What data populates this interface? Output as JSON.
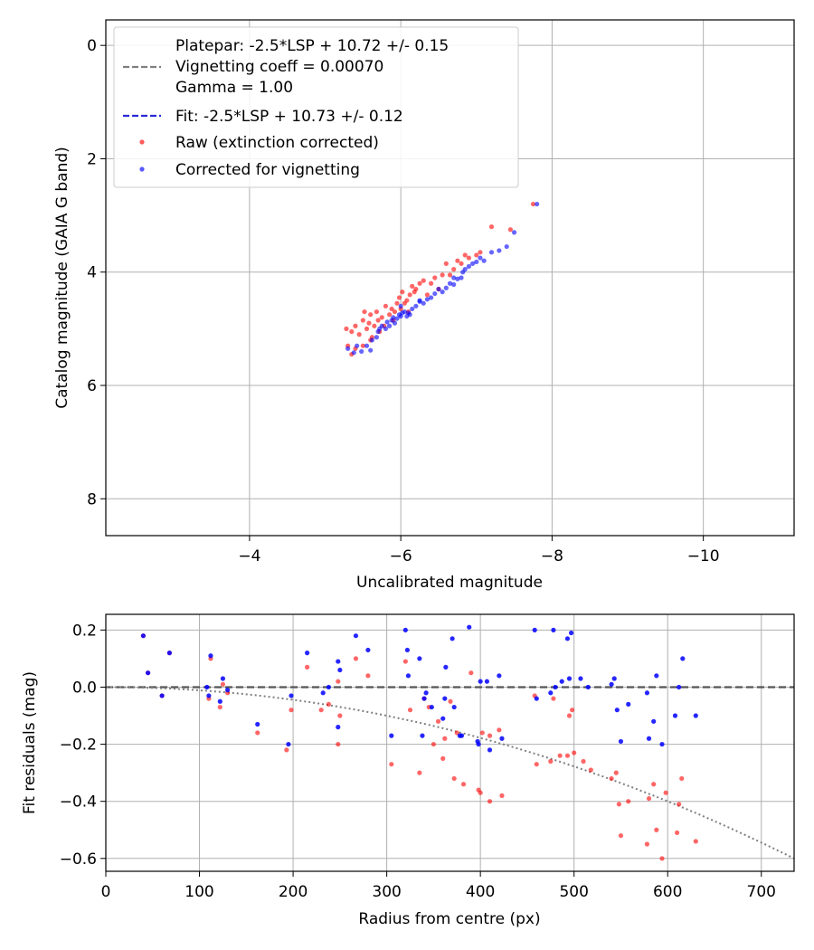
{
  "chart_data": [
    {
      "type": "scatter",
      "xlabel": "Uncalibrated magnitude",
      "ylabel": "Catalog magnitude (GAIA G band)",
      "xlim": [
        -2.1,
        -11.2
      ],
      "ylim": [
        8.65,
        -0.45
      ],
      "x_inverted": true,
      "y_inverted": true,
      "x_ticks": [
        -4,
        -6,
        -8,
        -10
      ],
      "x_tick_labels": [
        "−4",
        "−6",
        "−8",
        "−10"
      ],
      "y_ticks": [
        0,
        2,
        4,
        6,
        8
      ],
      "y_tick_labels": [
        "0",
        "2",
        "4",
        "6",
        "8"
      ],
      "grid": true,
      "legend_position": "upper-left",
      "lines": [
        {
          "name": "Platepar: -2.5*LSP + 10.72 +/- 0.15\nVignetting coeff = 0.00070\nGamma = 1.00",
          "slope": -1,
          "intercept": 10.72,
          "color": "#7f7f7f",
          "style": "dashed"
        },
        {
          "name": "Fit: -2.5*LSP + 10.73 +/- 0.12",
          "slope": -1,
          "intercept": 10.73,
          "color": "#2a2ad6",
          "style": "dashed"
        }
      ],
      "series": [
        {
          "name": "Raw (extinction corrected)",
          "color": "#ff0000",
          "points": [
            [
              -5.28,
              5.0
            ],
            [
              -5.35,
              5.05
            ],
            [
              -5.4,
              4.95
            ],
            [
              -5.45,
              5.1
            ],
            [
              -5.5,
              4.85
            ],
            [
              -5.52,
              4.7
            ],
            [
              -5.55,
              5.0
            ],
            [
              -5.58,
              4.9
            ],
            [
              -5.6,
              4.75
            ],
            [
              -5.62,
              5.15
            ],
            [
              -5.65,
              4.95
            ],
            [
              -5.68,
              4.7
            ],
            [
              -5.7,
              4.85
            ],
            [
              -5.72,
              5.05
            ],
            [
              -5.75,
              4.8
            ],
            [
              -5.78,
              4.95
            ],
            [
              -5.8,
              4.6
            ],
            [
              -5.85,
              4.75
            ],
            [
              -5.88,
              4.65
            ],
            [
              -5.9,
              4.85
            ],
            [
              -5.92,
              4.7
            ],
            [
              -5.95,
              4.55
            ],
            [
              -5.98,
              4.45
            ],
            [
              -6.0,
              4.65
            ],
            [
              -6.02,
              4.35
            ],
            [
              -6.05,
              4.55
            ],
            [
              -6.08,
              4.5
            ],
            [
              -6.1,
              4.7
            ],
            [
              -6.12,
              4.4
            ],
            [
              -6.15,
              4.25
            ],
            [
              -6.18,
              4.35
            ],
            [
              -6.2,
              4.3
            ],
            [
              -6.25,
              4.2
            ],
            [
              -6.3,
              4.15
            ],
            [
              -6.35,
              4.4
            ],
            [
              -6.4,
              4.2
            ],
            [
              -6.45,
              4.1
            ],
            [
              -6.5,
              4.3
            ],
            [
              -6.55,
              4.05
            ],
            [
              -6.6,
              3.85
            ],
            [
              -6.65,
              4.05
            ],
            [
              -6.7,
              3.95
            ],
            [
              -6.75,
              3.8
            ],
            [
              -6.8,
              3.85
            ],
            [
              -6.85,
              3.7
            ],
            [
              -6.9,
              3.75
            ],
            [
              -7.0,
              3.7
            ],
            [
              -7.05,
              3.65
            ],
            [
              -7.2,
              3.2
            ],
            [
              -7.45,
              3.25
            ],
            [
              -7.75,
              2.8
            ],
            [
              -5.3,
              5.3
            ],
            [
              -5.35,
              5.45
            ],
            [
              -5.4,
              5.35
            ],
            [
              -5.5,
              5.3
            ],
            [
              -5.6,
              5.2
            ]
          ]
        },
        {
          "name": "Corrected for vignetting",
          "color": "#0000ff",
          "points": [
            [
              -5.3,
              5.35
            ],
            [
              -5.38,
              5.42
            ],
            [
              -5.42,
              5.3
            ],
            [
              -5.48,
              5.4
            ],
            [
              -5.55,
              5.3
            ],
            [
              -5.6,
              5.38
            ],
            [
              -5.62,
              5.2
            ],
            [
              -5.68,
              5.15
            ],
            [
              -5.7,
              5.05
            ],
            [
              -5.72,
              5.0
            ],
            [
              -5.75,
              4.95
            ],
            [
              -5.8,
              5.0
            ],
            [
              -5.82,
              4.88
            ],
            [
              -5.85,
              4.95
            ],
            [
              -5.88,
              4.85
            ],
            [
              -5.9,
              4.8
            ],
            [
              -5.92,
              4.9
            ],
            [
              -5.95,
              4.82
            ],
            [
              -5.98,
              4.75
            ],
            [
              -6.0,
              4.78
            ],
            [
              -6.02,
              4.72
            ],
            [
              -6.05,
              4.7
            ],
            [
              -6.08,
              4.78
            ],
            [
              -6.1,
              4.72
            ],
            [
              -6.12,
              4.75
            ],
            [
              -6.15,
              4.65
            ],
            [
              -6.2,
              4.6
            ],
            [
              -6.25,
              4.52
            ],
            [
              -6.3,
              4.55
            ],
            [
              -6.35,
              4.48
            ],
            [
              -6.4,
              4.45
            ],
            [
              -6.45,
              4.38
            ],
            [
              -6.5,
              4.3
            ],
            [
              -6.55,
              4.35
            ],
            [
              -6.6,
              4.28
            ],
            [
              -6.65,
              4.2
            ],
            [
              -6.7,
              4.22
            ],
            [
              -6.75,
              4.12
            ],
            [
              -6.8,
              4.1
            ],
            [
              -6.82,
              4.0
            ],
            [
              -6.85,
              3.95
            ],
            [
              -6.9,
              3.9
            ],
            [
              -6.95,
              3.85
            ],
            [
              -7.0,
              3.82
            ],
            [
              -7.05,
              3.75
            ],
            [
              -7.1,
              3.8
            ],
            [
              -7.2,
              3.65
            ],
            [
              -7.3,
              3.62
            ],
            [
              -7.4,
              3.55
            ],
            [
              -7.5,
              3.3
            ],
            [
              -7.8,
              2.8
            ],
            [
              -6.0,
              4.6
            ],
            [
              -6.25,
              4.5
            ],
            [
              -6.7,
              4.1
            ]
          ]
        }
      ]
    },
    {
      "type": "scatter",
      "xlabel": "Radius from centre (px)",
      "ylabel": "Fit residuals (mag)",
      "xlim": [
        0,
        735
      ],
      "ylim": [
        -0.645,
        0.255
      ],
      "x_ticks": [
        0,
        100,
        200,
        300,
        400,
        500,
        600,
        700
      ],
      "x_tick_labels": [
        "0",
        "100",
        "200",
        "300",
        "400",
        "500",
        "600",
        "700"
      ],
      "y_ticks": [
        0.2,
        0.0,
        -0.2,
        -0.4,
        -0.6
      ],
      "y_tick_labels": [
        "0.2",
        "0.0",
        "−0.2",
        "−0.4",
        "−0.6"
      ],
      "grid": true,
      "lines": [
        {
          "type": "horizontal",
          "y": 0.0,
          "color": "#555555",
          "style": "dashed"
        },
        {
          "type": "curve",
          "function": "-0.000001111*x^2",
          "color": "#7f7f7f",
          "style": "dotted"
        }
      ],
      "series": [
        {
          "name": "Raw",
          "color": "#ff0000",
          "points": [
            [
              40,
              0.18
            ],
            [
              45,
              0.05
            ],
            [
              60,
              -0.03
            ],
            [
              68,
              0.12
            ],
            [
              110,
              -0.04
            ],
            [
              112,
              0.1
            ],
            [
              122,
              -0.07
            ],
            [
              125,
              0.01
            ],
            [
              130,
              -0.02
            ],
            [
              162,
              -0.16
            ],
            [
              193,
              -0.22
            ],
            [
              198,
              -0.08
            ],
            [
              215,
              0.07
            ],
            [
              230,
              -0.08
            ],
            [
              238,
              -0.06
            ],
            [
              248,
              0.02
            ],
            [
              248,
              -0.2
            ],
            [
              250,
              -0.1
            ],
            [
              267,
              0.1
            ],
            [
              280,
              0.04
            ],
            [
              305,
              -0.27
            ],
            [
              320,
              0.09
            ],
            [
              325,
              -0.08
            ],
            [
              335,
              -0.3
            ],
            [
              340,
              -0.04
            ],
            [
              345,
              -0.07
            ],
            [
              350,
              -0.2
            ],
            [
              355,
              -0.12
            ],
            [
              360,
              -0.25
            ],
            [
              362,
              -0.18
            ],
            [
              368,
              -0.05
            ],
            [
              372,
              -0.32
            ],
            [
              375,
              -0.16
            ],
            [
              382,
              -0.34
            ],
            [
              390,
              0.05
            ],
            [
              398,
              -0.36
            ],
            [
              400,
              -0.37
            ],
            [
              402,
              -0.16
            ],
            [
              410,
              -0.4
            ],
            [
              410,
              -0.17
            ],
            [
              420,
              -0.15
            ],
            [
              423,
              -0.38
            ],
            [
              458,
              -0.03
            ],
            [
              460,
              -0.27
            ],
            [
              475,
              -0.26
            ],
            [
              478,
              -0.04
            ],
            [
              485,
              -0.24
            ],
            [
              493,
              -0.24
            ],
            [
              495,
              -0.1
            ],
            [
              498,
              -0.08
            ],
            [
              500,
              -0.23
            ],
            [
              510,
              -0.26
            ],
            [
              518,
              -0.29
            ],
            [
              540,
              -0.32
            ],
            [
              545,
              -0.3
            ],
            [
              548,
              -0.41
            ],
            [
              550,
              -0.52
            ],
            [
              558,
              -0.4
            ],
            [
              578,
              -0.55
            ],
            [
              580,
              -0.39
            ],
            [
              585,
              -0.34
            ],
            [
              588,
              -0.5
            ],
            [
              594,
              -0.6
            ],
            [
              598,
              -0.37
            ],
            [
              610,
              -0.51
            ],
            [
              612,
              -0.41
            ],
            [
              615,
              -0.32
            ],
            [
              630,
              -0.54
            ]
          ]
        },
        {
          "name": "Corrected",
          "color": "#0000ff",
          "points": [
            [
              40,
              0.18
            ],
            [
              45,
              0.05
            ],
            [
              60,
              -0.03
            ],
            [
              68,
              0.12
            ],
            [
              108,
              0.0
            ],
            [
              110,
              -0.03
            ],
            [
              112,
              0.11
            ],
            [
              122,
              -0.05
            ],
            [
              125,
              0.03
            ],
            [
              130,
              -0.01
            ],
            [
              162,
              -0.13
            ],
            [
              195,
              -0.2
            ],
            [
              198,
              -0.03
            ],
            [
              215,
              0.12
            ],
            [
              232,
              -0.02
            ],
            [
              238,
              0.0
            ],
            [
              248,
              0.09
            ],
            [
              248,
              -0.14
            ],
            [
              250,
              0.06
            ],
            [
              267,
              0.18
            ],
            [
              280,
              0.13
            ],
            [
              305,
              -0.17
            ],
            [
              320,
              0.2
            ],
            [
              322,
              0.13
            ],
            [
              323,
              0.04
            ],
            [
              335,
              0.1
            ],
            [
              338,
              -0.17
            ],
            [
              340,
              -0.04
            ],
            [
              342,
              -0.02
            ],
            [
              348,
              -0.07
            ],
            [
              360,
              -0.11
            ],
            [
              362,
              -0.04
            ],
            [
              363,
              0.07
            ],
            [
              370,
              0.17
            ],
            [
              372,
              -0.07
            ],
            [
              378,
              -0.17
            ],
            [
              380,
              -0.17
            ],
            [
              388,
              0.21
            ],
            [
              397,
              -0.19
            ],
            [
              398,
              -0.2
            ],
            [
              400,
              0.02
            ],
            [
              407,
              0.02
            ],
            [
              410,
              -0.22
            ],
            [
              420,
              0.04
            ],
            [
              423,
              -0.18
            ],
            [
              458,
              0.2
            ],
            [
              460,
              -0.04
            ],
            [
              475,
              -0.02
            ],
            [
              478,
              0.2
            ],
            [
              480,
              0.0
            ],
            [
              487,
              0.02
            ],
            [
              493,
              0.17
            ],
            [
              495,
              0.03
            ],
            [
              497,
              0.19
            ],
            [
              507,
              0.03
            ],
            [
              515,
              0.0
            ],
            [
              540,
              0.01
            ],
            [
              543,
              0.03
            ],
            [
              546,
              -0.08
            ],
            [
              550,
              -0.19
            ],
            [
              558,
              -0.06
            ],
            [
              578,
              -0.02
            ],
            [
              580,
              -0.18
            ],
            [
              585,
              -0.12
            ],
            [
              588,
              0.04
            ],
            [
              594,
              -0.2
            ],
            [
              608,
              -0.1
            ],
            [
              612,
              0.0
            ],
            [
              616,
              0.1
            ],
            [
              630,
              -0.1
            ]
          ]
        }
      ]
    }
  ]
}
